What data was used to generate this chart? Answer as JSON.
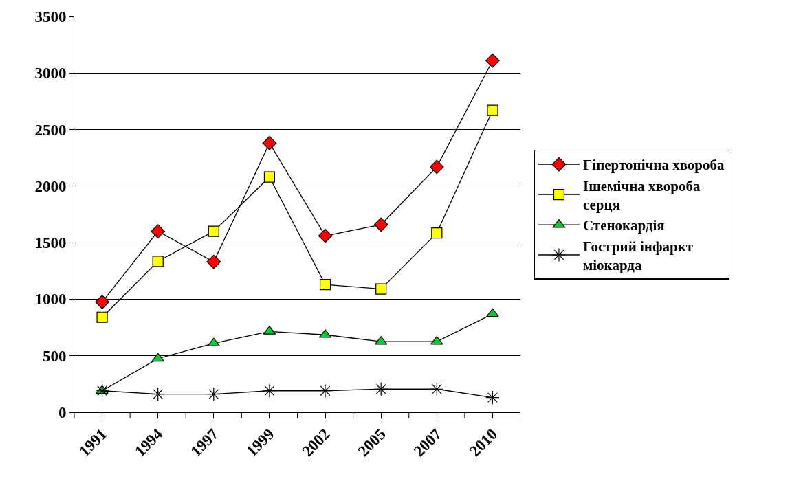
{
  "chart_data": {
    "type": "line",
    "categories": [
      "1991",
      "1994",
      "1997",
      "1999",
      "2002",
      "2005",
      "2007",
      "2010"
    ],
    "series": [
      {
        "name": "Гіпертонічна хвороба",
        "color": "#ff0000",
        "marker": "diamond",
        "values": [
          975,
          1600,
          1330,
          2380,
          1560,
          1660,
          2170,
          3110
        ]
      },
      {
        "name": "Ішемічна хвороба серця",
        "color": "#ffff00",
        "marker": "square",
        "values": [
          840,
          1335,
          1600,
          2080,
          1130,
          1090,
          1585,
          2670
        ]
      },
      {
        "name": "Стенокардія",
        "color": "#00cc33",
        "marker": "triangle",
        "values": [
          190,
          475,
          610,
          715,
          685,
          625,
          625,
          870
        ]
      },
      {
        "name": "Гострий інфаркт міокарда",
        "color": "#000000",
        "marker": "cross",
        "values": [
          190,
          160,
          160,
          190,
          190,
          205,
          205,
          130
        ]
      }
    ],
    "ylim": [
      0,
      3500
    ],
    "yticks": [
      0,
      500,
      1000,
      1500,
      2000,
      2500,
      3000,
      3500
    ],
    "grid": "y",
    "legend": "right",
    "line_style": "solid"
  }
}
